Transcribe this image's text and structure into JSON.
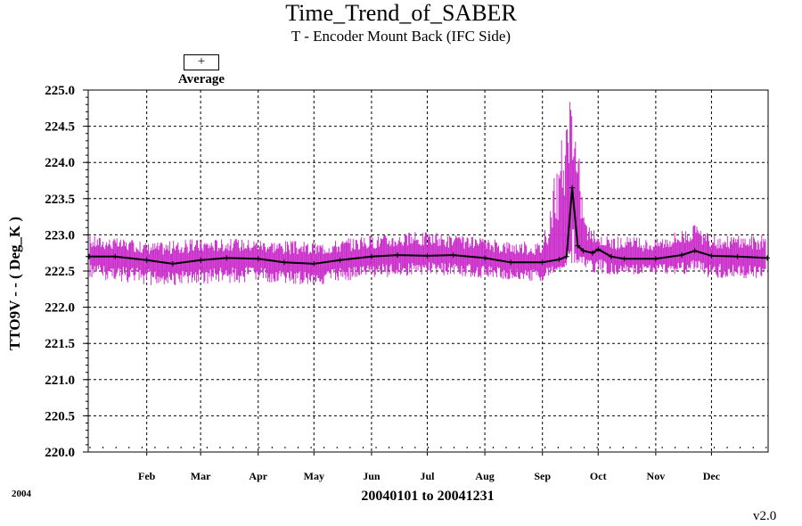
{
  "title": "Time_Trend_of_SABER",
  "subtitle": "T - Encoder Mount Back (IFC Side)",
  "legend": {
    "symbol": "+",
    "label": "Average"
  },
  "ylabel": "TTO9V  - - ( Deg_K )",
  "xlabel": "20040101 to 20041231",
  "year_label": "2004",
  "version": "v2.0",
  "colors": {
    "raw": "#cc33cc",
    "average": "#000000"
  },
  "chart_data": {
    "type": "line",
    "title": "Time_Trend_of_SABER",
    "subtitle": "T - Encoder Mount Back (IFC Side)",
    "xlabel": "20040101 to 20041231",
    "ylabel": "TTO9V  - - ( Deg_K )",
    "xlim": [
      "2004-01-01",
      "2004-12-31"
    ],
    "ylim": [
      220.0,
      225.0
    ],
    "yticks": [
      "220.0",
      "220.5",
      "221.0",
      "221.5",
      "222.0",
      "222.5",
      "223.0",
      "223.5",
      "224.0",
      "224.5",
      "225.0"
    ],
    "xticks": [
      "Feb",
      "Mar",
      "Apr",
      "May",
      "Jun",
      "Jul",
      "Aug",
      "Sep",
      "Oct",
      "Nov",
      "Dec"
    ],
    "grid": true,
    "legend_position": "top-left",
    "series": [
      {
        "name": "Average",
        "x": [
          "2004-01-01",
          "2004-01-15",
          "2004-02-01",
          "2004-02-15",
          "2004-03-01",
          "2004-03-15",
          "2004-04-01",
          "2004-04-15",
          "2004-05-01",
          "2004-05-15",
          "2004-06-01",
          "2004-06-15",
          "2004-07-01",
          "2004-07-15",
          "2004-08-01",
          "2004-08-15",
          "2004-09-01",
          "2004-09-10",
          "2004-09-14",
          "2004-09-17",
          "2004-09-20",
          "2004-09-23",
          "2004-09-28",
          "2004-10-01",
          "2004-10-08",
          "2004-10-15",
          "2004-11-01",
          "2004-11-15",
          "2004-11-22",
          "2004-12-01",
          "2004-12-15",
          "2004-12-31"
        ],
        "values": [
          222.7,
          222.7,
          222.65,
          222.6,
          222.65,
          222.68,
          222.67,
          222.62,
          222.6,
          222.65,
          222.7,
          222.72,
          222.71,
          222.72,
          222.68,
          222.62,
          222.62,
          222.66,
          222.7,
          223.65,
          222.85,
          222.78,
          222.75,
          222.8,
          222.7,
          222.67,
          222.67,
          222.72,
          222.78,
          222.71,
          222.7,
          222.68
        ]
      }
    ],
    "raw_series": {
      "name": "",
      "description_values": "daily min/max envelope of raw samples",
      "x": [
        "2004-01-01",
        "2004-02-01",
        "2004-03-01",
        "2004-04-01",
        "2004-05-01",
        "2004-06-01",
        "2004-07-01",
        "2004-08-01",
        "2004-09-01",
        "2004-09-17",
        "2004-09-18",
        "2004-09-25",
        "2004-10-01",
        "2004-11-01",
        "2004-11-22",
        "2004-12-01",
        "2004-12-31"
      ],
      "min": [
        222.4,
        222.3,
        222.3,
        222.35,
        222.3,
        222.4,
        222.45,
        222.4,
        222.35,
        222.6,
        222.6,
        222.55,
        222.45,
        222.45,
        222.45,
        222.4,
        222.4
      ],
      "max": [
        223.0,
        222.9,
        222.95,
        222.95,
        222.9,
        223.0,
        223.05,
        222.95,
        222.9,
        225.0,
        224.8,
        223.2,
        223.0,
        222.95,
        223.15,
        223.0,
        223.0
      ]
    }
  }
}
